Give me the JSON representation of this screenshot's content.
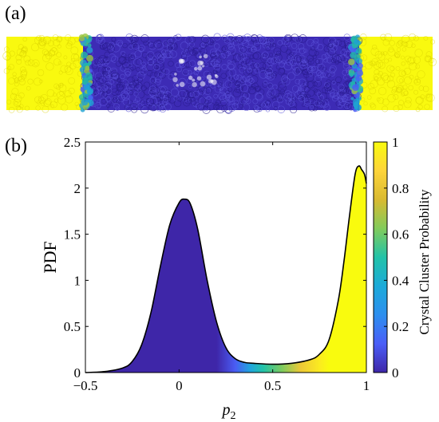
{
  "panel_a_label": "(a)",
  "panel_b_label": "(b)",
  "chart_data": [
    {
      "type": "image",
      "panel": "(a)",
      "description_colors": {
        "crystal": "#f9f90f",
        "amorphous": "#3d2bb5",
        "interface": "#1fa3d3"
      },
      "regions": [
        "crystal",
        "amorphous",
        "crystal"
      ]
    },
    {
      "type": "area",
      "panel": "(b)",
      "title": "",
      "xlabel": "p",
      "xlabel_subscript": "2",
      "ylabel": "PDF",
      "xlim": [
        -0.5,
        1
      ],
      "ylim": [
        0,
        2.5
      ],
      "xticks": [
        "−0.5",
        "0",
        "0.5",
        "1"
      ],
      "yticks": [
        "0",
        "0.5",
        "1",
        "1.5",
        "2",
        "2.5"
      ],
      "curve": {
        "x": [
          -0.5,
          -0.4,
          -0.3,
          -0.25,
          -0.2,
          -0.15,
          -0.1,
          -0.05,
          0.0,
          0.03,
          0.06,
          0.1,
          0.15,
          0.2,
          0.25,
          0.3,
          0.35,
          0.4,
          0.5,
          0.6,
          0.7,
          0.75,
          0.8,
          0.85,
          0.88,
          0.91,
          0.94,
          0.96,
          0.975,
          0.99,
          1.0
        ],
        "y": [
          0.0,
          0.01,
          0.05,
          0.12,
          0.3,
          0.65,
          1.15,
          1.6,
          1.84,
          1.88,
          1.83,
          1.55,
          1.0,
          0.55,
          0.27,
          0.15,
          0.11,
          0.1,
          0.09,
          0.1,
          0.14,
          0.2,
          0.35,
          0.78,
          1.2,
          1.7,
          2.15,
          2.24,
          2.2,
          2.15,
          2.05
        ]
      },
      "colorbar": {
        "label": "Crystal Cluster Probability",
        "range": [
          0,
          1
        ],
        "ticks": [
          "0",
          "0.2",
          "0.4",
          "0.6",
          "0.8",
          "1"
        ],
        "colormap": [
          "#3e26a8",
          "#4a5ef7",
          "#2d8fef",
          "#1caad9",
          "#22c3a8",
          "#82cb5b",
          "#d9ba31",
          "#fed43a",
          "#f9fb0e"
        ]
      },
      "fill_probability_points": {
        "x": [
          -0.5,
          0.2,
          0.3,
          0.38,
          0.45,
          0.55,
          0.65,
          0.75,
          0.8,
          1.0
        ],
        "p": [
          0.0,
          0.0,
          0.12,
          0.35,
          0.5,
          0.62,
          0.82,
          0.95,
          1.0,
          1.0
        ]
      },
      "grid": false
    }
  ]
}
